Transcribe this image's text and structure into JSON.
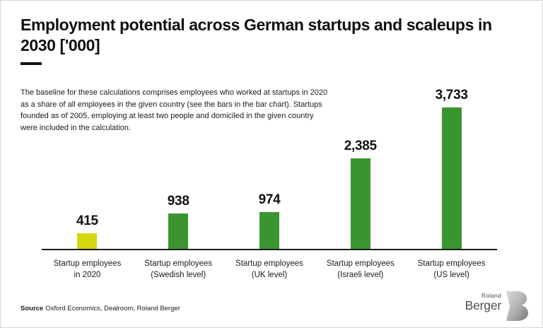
{
  "page": {
    "title": "Employment potential across German startups and scaleups in 2030 ['000]",
    "description": "The baseline for these calculations comprises employees who worked at startups in 2020 as a share of all employees in the given country (see the bars in the bar chart). Startups founded as of 2005, employing at least two people and domiciled in the given country were included in the calculation.",
    "source_label": "Source",
    "source_text": "Oxford Economics, Dealroom, Roland Berger",
    "logo": {
      "line1": "Roland",
      "line2": "Berger"
    }
  },
  "colors": {
    "highlight_bar": "#d5d70f",
    "bar_green": "#3a9531",
    "text": "#1a1a1a",
    "axis": "#1a1a1a",
    "logo_text": "#4d4d4d"
  },
  "chart_data": {
    "type": "bar",
    "title": "Employment potential across German startups and scaleups in 2030 ['000]",
    "units": "'000",
    "categories": [
      "Startup employees in 2020",
      "Startup employees (Swedish level)",
      "Startup employees (UK level)",
      "Startup employees (Israeli level)",
      "Startup employees (US level)"
    ],
    "category_lines": [
      [
        "Startup employees",
        "in 2020"
      ],
      [
        "Startup employees",
        "(Swedish level)"
      ],
      [
        "Startup employees",
        "(UK level)"
      ],
      [
        "Startup employees",
        "(Israeli level)"
      ],
      [
        "Startup employees",
        "(US level)"
      ]
    ],
    "values": [
      415,
      938,
      974,
      2385,
      3733
    ],
    "value_labels": [
      "415",
      "938",
      "974",
      "2,385",
      "3,733"
    ],
    "bar_colors": [
      "#d5d70f",
      "#3a9531",
      "#3a9531",
      "#3a9531",
      "#3a9531"
    ],
    "ylim": [
      0,
      3733
    ],
    "grid": false,
    "legend": false,
    "xlabel": "",
    "ylabel": ""
  }
}
